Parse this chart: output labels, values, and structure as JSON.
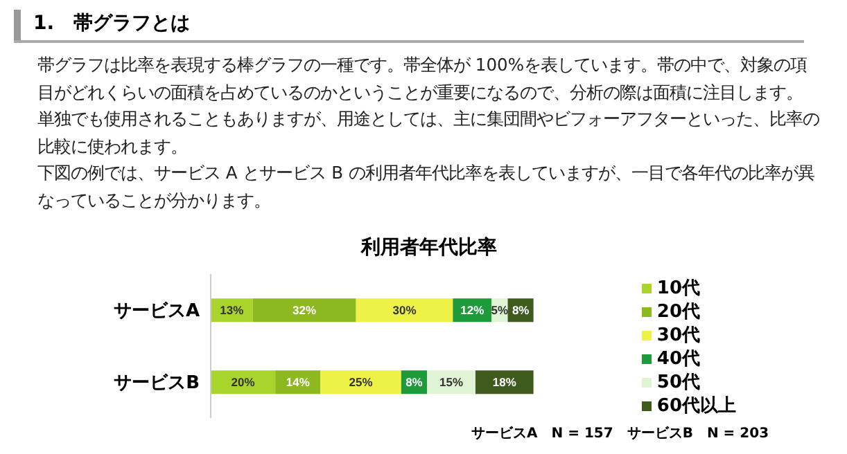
{
  "chart_data": {
    "type": "bar",
    "orientation": "horizontal",
    "stacked": true,
    "title": "利用者年代比率",
    "categories": [
      "サービスA",
      "サービスB"
    ],
    "series": [
      {
        "name": "10代",
        "color": "#a8d42c",
        "values": [
          13,
          20
        ],
        "value_labels": [
          "13%",
          "20%"
        ]
      },
      {
        "name": "20代",
        "color": "#8db81f",
        "values": [
          32,
          14
        ],
        "value_labels": [
          "32%",
          "14%"
        ]
      },
      {
        "name": "30代",
        "color": "#eef246",
        "values": [
          30,
          25
        ],
        "value_labels": [
          "30%",
          "25%"
        ]
      },
      {
        "name": "40代",
        "color": "#1f9a3b",
        "values": [
          12,
          8
        ],
        "value_labels": [
          "12%",
          "8%"
        ]
      },
      {
        "name": "50代",
        "color": "#e0f3d4",
        "values": [
          5,
          15
        ],
        "value_labels": [
          "5%",
          "15%"
        ]
      },
      {
        "name": "60代以上",
        "color": "#3e5a1d",
        "values": [
          8,
          18
        ],
        "value_labels": [
          "8%",
          "18%"
        ]
      }
    ],
    "xlim": [
      0,
      100
    ],
    "tick_labels": "y",
    "legend": "right",
    "annotations": [
      "1.　帯グラフとは",
      "帯グラフは比率を表現する棒グラフの一種です。帯全体が 100%を表しています。帯の中で、対象の項目がどれくらいの面積を占めているのかということが重要になるので、分析の際は面積に注目します。",
      "単独でも使用されることもありますが、用途としては、主に集団間やビフォーアフターといった、比率の比較に使われます。",
      "下図の例では、サービス A とサービス B の利用者年代比率を表していますが、一目で各年代の比率が異なっていることが分かります。",
      "サービスA　N = 157　サービスB　N = 203"
    ]
  }
}
